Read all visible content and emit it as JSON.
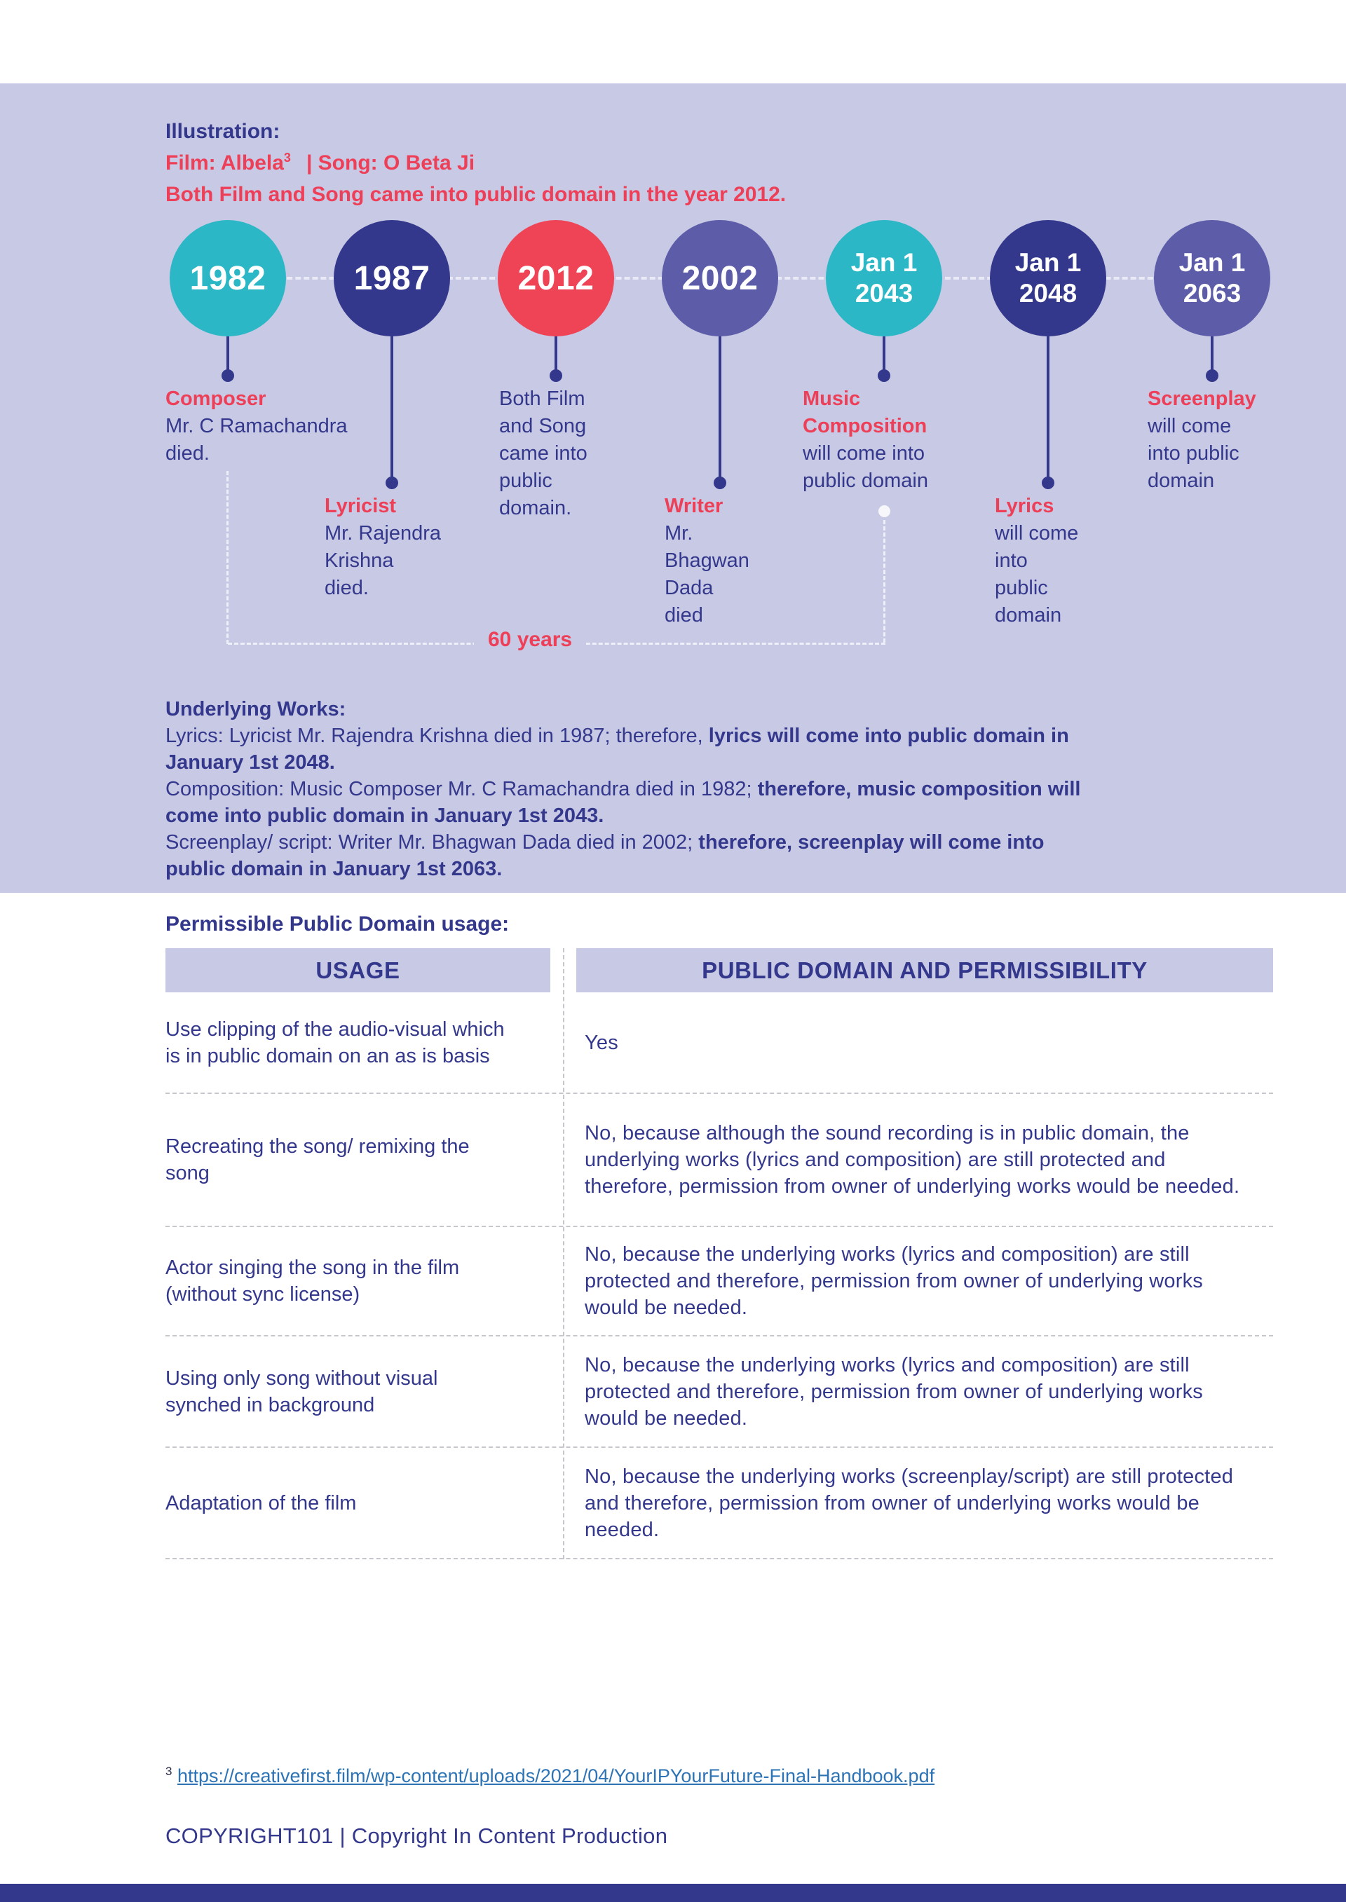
{
  "illustration": {
    "heading": "Illustration:",
    "film": "Film: Albela",
    "footnote_mark": "3",
    "song": "| Song: O Beta Ji",
    "description": "Both Film and Song came into public domain in the year 2012."
  },
  "timeline": {
    "span_label": "60 years",
    "nodes": [
      {
        "year_lines": [
          "1982"
        ],
        "color": "#2bb7c6",
        "label": "Composer",
        "text": "Mr. C Ramachandra\ndied.",
        "stem": "short"
      },
      {
        "year_lines": [
          "1987"
        ],
        "color": "#34388c",
        "label": "Lyricist",
        "text": "Mr. Rajendra\nKrishna\ndied.",
        "stem": "long"
      },
      {
        "year_lines": [
          "2012"
        ],
        "color": "#ef4356",
        "label": "",
        "text": "Both Film\nand Song\ncame into\npublic\ndomain.",
        "stem": "short"
      },
      {
        "year_lines": [
          "2002"
        ],
        "color": "#5d5ca9",
        "label": "Writer",
        "text": "Mr.\nBhagwan\nDada\ndied",
        "stem": "long"
      },
      {
        "year_lines": [
          "Jan 1",
          "2043"
        ],
        "color": "#2bb7c6",
        "label": "Music\nComposition",
        "text": "will come into\npublic domain",
        "stem": "short"
      },
      {
        "year_lines": [
          "Jan 1",
          "2048"
        ],
        "color": "#34388c",
        "label": "Lyrics",
        "text": "will come\ninto\npublic\ndomain",
        "stem": "long"
      },
      {
        "year_lines": [
          "Jan 1",
          "2063"
        ],
        "color": "#5d5ca9",
        "label": "Screenplay",
        "text": "will come\ninto public\ndomain",
        "stem": "short"
      }
    ]
  },
  "underlying_works": {
    "heading": "Underlying Works:",
    "items": [
      {
        "normal": "Lyrics: Lyricist Mr. Rajendra Krishna died in 1987; therefore, ",
        "bold": "lyrics will come into public domain in\nJanuary 1st 2048."
      },
      {
        "normal": "Composition: Music Composer Mr. C Ramachandra died in 1982; ",
        "bold": "therefore, music composition will\ncome into public domain in January 1st 2043."
      },
      {
        "normal": "Screenplay/ script: Writer Mr. Bhagwan Dada died in 2002; ",
        "bold": "therefore, screenplay will come into\npublic domain in January 1st 2063."
      }
    ]
  },
  "table": {
    "title": "Permissible Public Domain usage:",
    "headers": [
      "USAGE",
      "PUBLIC DOMAIN AND PERMISSIBILITY"
    ],
    "rows": [
      {
        "usage": "Use clipping of the audio-visual which is in public domain on an as is basis",
        "permissibility": "Yes"
      },
      {
        "usage": "Recreating the song/ remixing the song",
        "permissibility": "No, because although the sound recording is in public domain, the underlying works (lyrics and composition) are still protected and therefore, permission from owner of underlying works would be needed."
      },
      {
        "usage": "Actor singing the song in the film (without sync license)",
        "permissibility": "No, because the underlying works (lyrics and composition) are still protected and therefore, permission from owner of underlying works would be needed."
      },
      {
        "usage": "Using only song without visual synched in background",
        "permissibility": "No, because the underlying works (lyrics and composition) are still protected and therefore, permission from owner of underlying works would be needed."
      },
      {
        "usage": "Adaptation of the film",
        "permissibility": "No, because the underlying works (screenplay/script) are still protected and therefore, permission from owner of underlying works would be needed."
      }
    ]
  },
  "footnote": {
    "mark": "3",
    "link_text": "https://creativefirst.film/wp-content/uploads/2021/04/YourIPYourFuture-Final-Handbook.pdf"
  },
  "footer": {
    "text": "COPYRIGHT101 | Copyright In Content Production"
  },
  "colors": {
    "navy": "#34388c",
    "red": "#ee3f58",
    "teal": "#2bb7c6",
    "purple": "#5d5ca9",
    "lavender": "#c8c9e4",
    "link_blue": "#2e74b5"
  }
}
